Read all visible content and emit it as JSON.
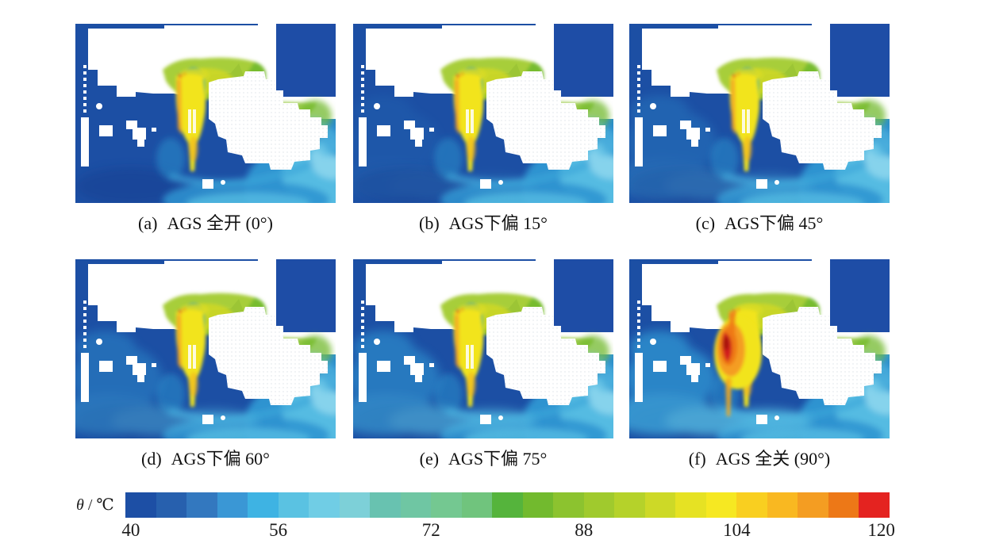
{
  "figure": {
    "panels": [
      {
        "label": "(a)",
        "text": "AGS 全开 (0°)",
        "ags_angle_deg": 0
      },
      {
        "label": "(b)",
        "text": "AGS下偏 15°",
        "ags_angle_deg": 15
      },
      {
        "label": "(c)",
        "text": "AGS下偏 45°",
        "ags_angle_deg": 45
      },
      {
        "label": "(d)",
        "text": "AGS下偏 60°",
        "ags_angle_deg": 60
      },
      {
        "label": "(e)",
        "text": "AGS下偏 75°",
        "ags_angle_deg": 75
      },
      {
        "label": "(f)",
        "text": "AGS 全关 (90°)",
        "ags_angle_deg": 90
      }
    ],
    "colorbar": {
      "theta": "θ",
      "separator": " / ",
      "unit": "℃",
      "ticks": [
        "40",
        "56",
        "72",
        "88",
        "104",
        "120"
      ],
      "min": 40,
      "max": 120,
      "levels": 25,
      "colors": [
        "#1d4fa5",
        "#2760ae",
        "#3378bf",
        "#3a97d5",
        "#3eb3e3",
        "#5ac2e2",
        "#70cde5",
        "#7dd0d8",
        "#68c2b0",
        "#6fc6a3",
        "#74c891",
        "#70c47d",
        "#55b43c",
        "#72ba2e",
        "#8cc32f",
        "#a0ca2d",
        "#b5d22a",
        "#cdd927",
        "#e6e223",
        "#f6e822",
        "#f9cf20",
        "#f9b821",
        "#f49d22",
        "#ed7817",
        "#e42320"
      ]
    }
  },
  "chart_data": {
    "type": "heatmap",
    "description": "Six CFD engine-bay temperature contour subplots comparing AGS (active grille shutter) opening angles; shared discrete rainbow colorbar at bottom.",
    "subplots": [
      {
        "label": "(a)",
        "caption": "AGS 全开 (0°)",
        "ags_angle_deg": 0,
        "state": "fully open"
      },
      {
        "label": "(b)",
        "caption": "AGS下偏 15°",
        "ags_angle_deg": 15,
        "state": "deflected down 15°"
      },
      {
        "label": "(c)",
        "caption": "AGS下偏 45°",
        "ags_angle_deg": 45,
        "state": "deflected down 45°"
      },
      {
        "label": "(d)",
        "caption": "AGS下偏 60°",
        "ags_angle_deg": 60,
        "state": "deflected down 60°"
      },
      {
        "label": "(e)",
        "caption": "AGS下偏 75°",
        "ags_angle_deg": 75,
        "state": "deflected down 75°"
      },
      {
        "label": "(f)",
        "caption": "AGS 全关 (90°)",
        "ags_angle_deg": 90,
        "state": "fully closed, red hot spot at radiator"
      }
    ],
    "colorbar": {
      "label": "θ / ℃",
      "variable": "θ",
      "unit": "℃",
      "range": [
        40,
        120
      ],
      "ticks": [
        40,
        56,
        72,
        88,
        104,
        120
      ],
      "discrete_levels": 25,
      "position": "bottom"
    },
    "grid": false
  }
}
